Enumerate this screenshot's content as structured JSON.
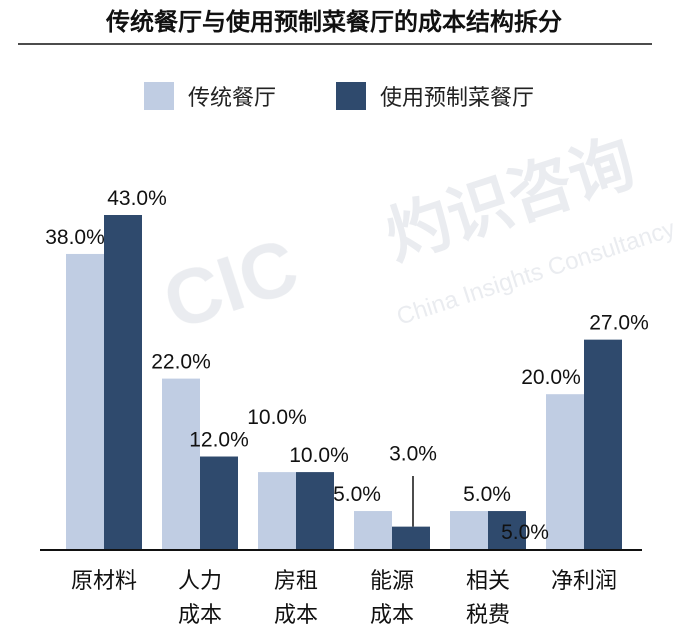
{
  "title": "传统餐厅与使用预制菜餐厅的成本结构拆分",
  "watermark": {
    "logo": "CIC",
    "chinese": "灼识咨询",
    "english": "China Insights Consultancy"
  },
  "colors": {
    "traditional": "#c0cde3",
    "prefab": "#2f4a6d",
    "axis": "#111111"
  },
  "chart_data": {
    "type": "bar",
    "title": "传统餐厅与使用预制菜餐厅的成本结构拆分",
    "categories": [
      [
        "原材料"
      ],
      [
        "人力",
        "成本"
      ],
      [
        "房租",
        "成本"
      ],
      [
        "能源",
        "成本"
      ],
      [
        "相关",
        "税费"
      ],
      [
        "净利润"
      ]
    ],
    "series": [
      {
        "name": "传统餐厅",
        "values": [
          38.0,
          22.0,
          10.0,
          5.0,
          5.0,
          20.0
        ],
        "labels": [
          "38.0%",
          "22.0%",
          "10.0%",
          "5.0%",
          "5.0%",
          "20.0%"
        ]
      },
      {
        "name": "使用预制菜餐厅",
        "values": [
          43.0,
          12.0,
          10.0,
          3.0,
          5.0,
          27.0
        ],
        "labels": [
          "43.0%",
          "12.0%",
          "10.0%",
          "3.0%",
          "5.0%",
          "27.0%"
        ]
      }
    ],
    "ylim": [
      0,
      45
    ],
    "grid": false,
    "legend": "top"
  }
}
